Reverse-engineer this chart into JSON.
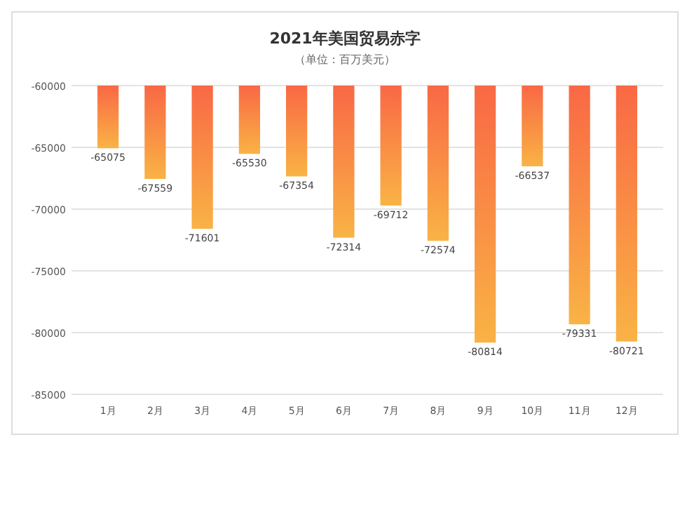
{
  "chart_data": {
    "type": "bar",
    "title": "2021年美国贸易赤字",
    "subtitle": "（单位：百万美元）",
    "categories": [
      "1月",
      "2月",
      "3月",
      "4月",
      "5月",
      "6月",
      "7月",
      "8月",
      "9月",
      "10月",
      "11月",
      "12月"
    ],
    "values": [
      -65075,
      -67559,
      -71601,
      -65530,
      -67354,
      -72314,
      -69712,
      -72574,
      -80814,
      -66537,
      -79331,
      -80721
    ],
    "color": "#f9b345",
    "ylim": [
      -85000,
      -60000
    ],
    "yticks": [
      -85000,
      -80000,
      -75000,
      -70000,
      -65000,
      -60000
    ],
    "grid": "y",
    "data_labels": true
  }
}
